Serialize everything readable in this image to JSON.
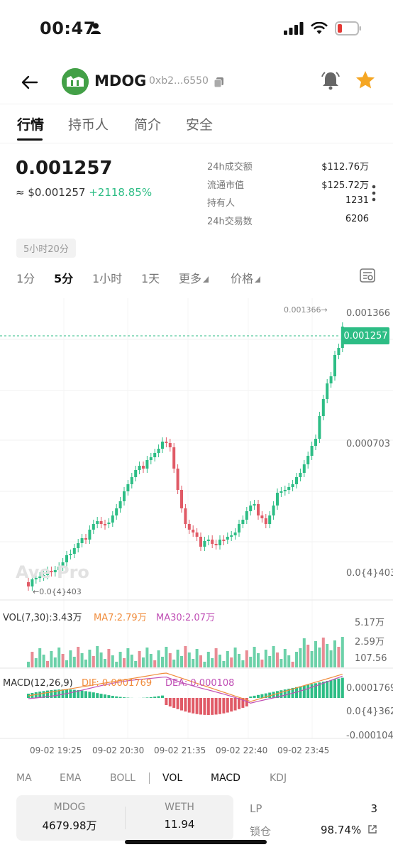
{
  "status": {
    "time": "00:47"
  },
  "header": {
    "token_name": "MDOG",
    "address": "0xb2...6550"
  },
  "tabs": [
    "行情",
    "持币人",
    "简介",
    "安全"
  ],
  "price": {
    "main": "0.001257",
    "usd": "≈ $0.001257",
    "change": "+2118.85%"
  },
  "stats": [
    {
      "k": "24h成交额",
      "v": "$112.76万"
    },
    {
      "k": "流通市值",
      "v": "$125.72万"
    },
    {
      "k": "持有人",
      "v": "1231"
    },
    {
      "k": "24h交易数",
      "v": "6206"
    }
  ],
  "time_badge": "5小时20分",
  "intervals": [
    "1分",
    "5分",
    "1小时",
    "1天",
    "更多",
    "价格"
  ],
  "chart": {
    "y_labels": [
      "0.001366",
      "0.000703",
      "0.0{4}403"
    ],
    "current_price": "0.001257",
    "high_marker": "0.001366→",
    "low_marker": "←0.0{4}403",
    "watermark": "Ave Pro",
    "vol": {
      "label": "VOL(7,30):3.43万",
      "ma7": "MA7:2.79万",
      "ma30": "MA30:2.07万",
      "y_labels": [
        "5.17万",
        "2.59万",
        "107.56"
      ]
    },
    "macd": {
      "label": "MACD(12,26,9)",
      "dif": "DIF: 0.0001769",
      "dea": "DEA: 0.000108",
      "y_labels": [
        "0.0001769",
        "0.0{4}362",
        "-0.000104"
      ]
    },
    "x_labels": [
      "09-02 19:25",
      "09-02 20:30",
      "09-02 21:35",
      "09-02 22:40",
      "09-02 23:45"
    ],
    "colors": {
      "up": "#2dbd85",
      "down": "#e05a66",
      "ma7": "#f08c3c",
      "ma30": "#c04fb5"
    }
  },
  "indicators": [
    "MA",
    "EMA",
    "BOLL",
    "VOL",
    "MACD",
    "KDJ"
  ],
  "pool": {
    "token_a": {
      "name": "MDOG",
      "value": "4679.98万"
    },
    "token_b": {
      "name": "WETH",
      "value": "11.94"
    },
    "lp_label": "LP",
    "lp_value": "3",
    "lock_label": "锁仓",
    "lock_value": "98.74%"
  }
}
